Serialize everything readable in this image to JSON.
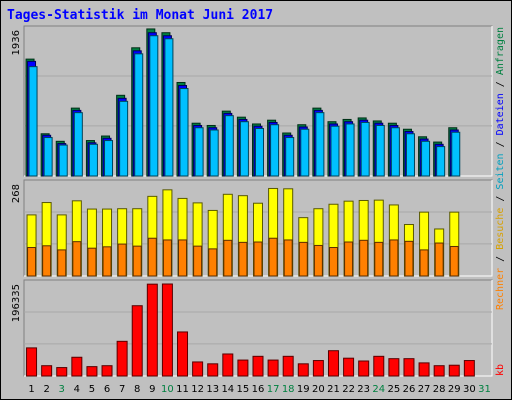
{
  "chart_data": {
    "type": "bar",
    "title": "Tages-Statistik im Monat Juni 2017",
    "days": [
      "1",
      "2",
      "3",
      "4",
      "5",
      "6",
      "7",
      "8",
      "9",
      "10",
      "11",
      "12",
      "13",
      "14",
      "15",
      "16",
      "17",
      "18",
      "19",
      "20",
      "21",
      "22",
      "23",
      "24",
      "25",
      "26",
      "27",
      "28",
      "29",
      "30",
      "31"
    ],
    "weekend_days": [
      "3",
      "10",
      "17",
      "18",
      "24",
      "31"
    ],
    "panels": [
      {
        "name": "requests-files-pages",
        "ylabel": "1936",
        "ymax": 1936,
        "series": [
          {
            "name": "Anfragen",
            "color": "#008040",
            "values": [
              1550,
              560,
              460,
              900,
              470,
              530,
              1070,
              1700,
              1950,
              1900,
              1240,
              700,
              670,
              860,
              780,
              690,
              740,
              570,
              680,
              900,
              720,
              750,
              770,
              730,
              700,
              620,
              520,
              450,
              640,
              0,
              0
            ]
          },
          {
            "name": "Dateien",
            "color": "#0000ff",
            "values": [
              1520,
              540,
              430,
              870,
              440,
              500,
              1030,
              1660,
              1900,
              1860,
              1200,
              670,
              640,
              830,
              750,
              660,
              710,
              540,
              650,
              870,
              690,
              720,
              740,
              700,
              670,
              590,
              490,
              420,
              610,
              0,
              0
            ]
          },
          {
            "name": "Seiten",
            "color": "#00c0ff",
            "values": [
              1450,
              510,
              410,
              840,
              420,
              470,
              990,
              1620,
              1860,
              1820,
              1160,
              640,
              610,
              800,
              720,
              630,
              680,
              510,
              620,
              840,
              660,
              690,
              710,
              670,
              640,
              560,
              460,
              390,
              580,
              0,
              0
            ]
          }
        ]
      },
      {
        "name": "visits-sites",
        "ylabel": "268",
        "ymax": 268,
        "series": [
          {
            "name": "Besuche",
            "color": "#ffff00",
            "values": [
              178,
              214,
              178,
              219,
              195,
              195,
              196,
              196,
              232,
              251,
              226,
              213,
              191,
              238,
              234,
              212,
              255,
              254,
              170,
              196,
              209,
              218,
              220,
              221,
              207,
              150,
              186,
              137,
              186,
              0,
              0
            ]
          },
          {
            "name": "Rechner",
            "color": "#ff8000",
            "values": [
              83,
              88,
              76,
              100,
              81,
              85,
              93,
              87,
              110,
              105,
              105,
              87,
              79,
              104,
              98,
              99,
              110,
              105,
              98,
              89,
              83,
              99,
              104,
              98,
              105,
              101,
              76,
              96,
              86,
              0,
              0
            ]
          }
        ]
      },
      {
        "name": "kbytes",
        "ylabel": "196335",
        "ymax": 196335,
        "series": [
          {
            "name": "kb",
            "color": "#ff0000",
            "values": [
              60000,
              22000,
              18000,
              40000,
              20000,
              22000,
              74000,
              150000,
              196000,
              196335,
              94000,
              30000,
              26000,
              47000,
              34000,
              42000,
              34000,
              42000,
              26000,
              33000,
              54000,
              38000,
              32000,
              42000,
              37000,
              37000,
              28000,
              22000,
              23000,
              33000,
              0
            ]
          }
        ]
      }
    ]
  }
}
